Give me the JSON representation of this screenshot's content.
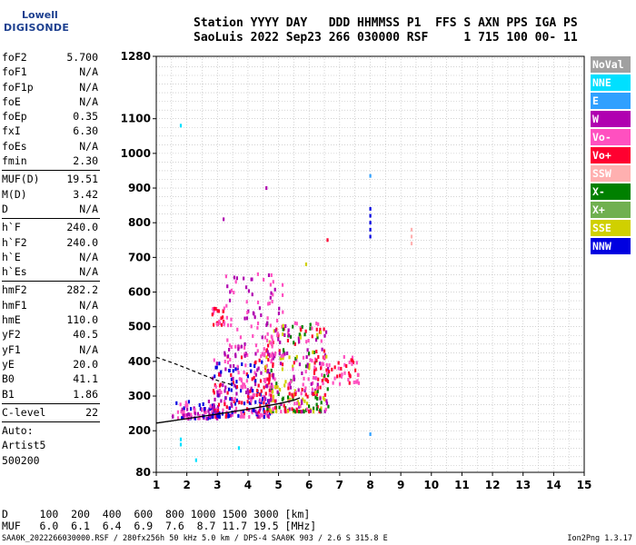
{
  "logo": {
    "line1": "Lowell",
    "line2": "DIGISONDE"
  },
  "header": {
    "line1": "Station YYYY DAY   DDD HHMMSS P1  FFS S AXN PPS IGA PS",
    "line2": "SaoLuis 2022 Sep23 266 030000 RSF     1 715 100 00- 11"
  },
  "params": {
    "group1": [
      {
        "name": "foF2",
        "value": "5.700"
      },
      {
        "name": "foF1",
        "value": "N/A"
      },
      {
        "name": "foF1p",
        "value": "N/A"
      },
      {
        "name": "foE",
        "value": "N/A"
      },
      {
        "name": "foEp",
        "value": "0.35"
      },
      {
        "name": "fxI",
        "value": "6.30"
      },
      {
        "name": "foEs",
        "value": "N/A"
      },
      {
        "name": "fmin",
        "value": "2.30"
      }
    ],
    "group2": [
      {
        "name": "MUF(D)",
        "value": "19.51"
      },
      {
        "name": "M(D)",
        "value": "3.42"
      },
      {
        "name": "D",
        "value": "N/A"
      }
    ],
    "group3": [
      {
        "name": "h`F",
        "value": "240.0"
      },
      {
        "name": "h`F2",
        "value": "240.0"
      },
      {
        "name": "h`E",
        "value": "N/A"
      },
      {
        "name": "h`Es",
        "value": "N/A"
      }
    ],
    "group4": [
      {
        "name": "hmF2",
        "value": "282.2"
      },
      {
        "name": "hmF1",
        "value": "N/A"
      },
      {
        "name": "hmE",
        "value": "110.0"
      },
      {
        "name": "yF2",
        "value": "40.5"
      },
      {
        "name": "yF1",
        "value": "N/A"
      },
      {
        "name": "yE",
        "value": "20.0"
      },
      {
        "name": "B0",
        "value": "41.1"
      },
      {
        "name": "B1",
        "value": "1.86"
      }
    ],
    "group5": [
      {
        "name": "C-level",
        "value": "22"
      }
    ],
    "auto": [
      "Auto:",
      "Artist5",
      "500200"
    ]
  },
  "legend": [
    {
      "label": "NoVal",
      "color": "#a0a0a0"
    },
    {
      "label": "NNE",
      "color": "#00e0ff"
    },
    {
      "label": "E",
      "color": "#30a0ff"
    },
    {
      "label": "W",
      "color": "#b000b0"
    },
    {
      "label": "Vo-",
      "color": "#ff50c0"
    },
    {
      "label": "Vo+",
      "color": "#ff0030"
    },
    {
      "label": "SSW",
      "color": "#ffb0b0"
    },
    {
      "label": "X-",
      "color": "#008000"
    },
    {
      "label": "X+",
      "color": "#70b050"
    },
    {
      "label": "SSE",
      "color": "#d0d000"
    },
    {
      "label": "NNW",
      "color": "#0000e0"
    }
  ],
  "chart_data": {
    "type": "scatter",
    "xlim": [
      1,
      15
    ],
    "ylim": [
      80,
      1280
    ],
    "xticks": [
      1,
      2,
      3,
      4,
      5,
      6,
      7,
      8,
      9,
      10,
      11,
      12,
      13,
      14,
      15
    ],
    "yticks": [
      80,
      200,
      300,
      400,
      500,
      600,
      700,
      800,
      900,
      1000,
      1100,
      1280
    ],
    "grid": true,
    "legend_position": "right",
    "profile_curve": {
      "x": [
        1.0,
        2.0,
        3.0,
        4.0,
        5.0,
        5.5,
        5.7
      ],
      "y": [
        222,
        235,
        248,
        262,
        278,
        288,
        295
      ]
    },
    "extrapolated_curve": {
      "x": [
        1.0,
        1.5,
        2.0,
        2.5,
        3.0,
        3.5
      ],
      "y": [
        412,
        397,
        380,
        362,
        345,
        332
      ]
    },
    "trace_clusters": [
      {
        "x_range": [
          1.5,
          3.0
        ],
        "y_range": [
          240,
          290
        ],
        "density": 90,
        "colors": [
          "#0000e0",
          "#b000b0",
          "#ff50c0"
        ]
      },
      {
        "x_range": [
          2.8,
          4.8
        ],
        "y_range": [
          245,
          420
        ],
        "density": 260,
        "colors": [
          "#0000e0",
          "#b000b0",
          "#ff50c0",
          "#ff0030"
        ]
      },
      {
        "x_range": [
          4.5,
          6.6
        ],
        "y_range": [
          260,
          520
        ],
        "density": 300,
        "colors": [
          "#ff0030",
          "#ff50c0",
          "#b000b0",
          "#008000",
          "#d0d000"
        ]
      },
      {
        "x_range": [
          3.2,
          5.2
        ],
        "y_range": [
          420,
          660
        ],
        "density": 110,
        "colors": [
          "#b000b0",
          "#ff50c0"
        ]
      },
      {
        "x_range": [
          2.8,
          3.3
        ],
        "y_range": [
          510,
          560
        ],
        "density": 25,
        "colors": [
          "#ff50c0",
          "#ff0030"
        ]
      },
      {
        "x_range": [
          6.0,
          7.6
        ],
        "y_range": [
          340,
          420
        ],
        "density": 60,
        "colors": [
          "#ff0030",
          "#ff50c0"
        ]
      }
    ],
    "isolated_points": [
      {
        "x": 1.8,
        "y": 1080,
        "color": "#00e0ff"
      },
      {
        "x": 1.8,
        "y": 175,
        "color": "#00e0ff"
      },
      {
        "x": 1.8,
        "y": 160,
        "color": "#00e0ff"
      },
      {
        "x": 2.3,
        "y": 115,
        "color": "#00e0ff"
      },
      {
        "x": 3.7,
        "y": 150,
        "color": "#00e0ff"
      },
      {
        "x": 8.0,
        "y": 935,
        "color": "#30a0ff"
      },
      {
        "x": 8.0,
        "y": 190,
        "color": "#30a0ff"
      },
      {
        "x": 8.0,
        "y": 840,
        "color": "#0000e0"
      },
      {
        "x": 8.0,
        "y": 820,
        "color": "#0000e0"
      },
      {
        "x": 8.0,
        "y": 800,
        "color": "#0000e0"
      },
      {
        "x": 8.0,
        "y": 780,
        "color": "#0000e0"
      },
      {
        "x": 8.0,
        "y": 760,
        "color": "#0000e0"
      },
      {
        "x": 9.35,
        "y": 780,
        "color": "#ffb0b0"
      },
      {
        "x": 9.35,
        "y": 760,
        "color": "#ffb0b0"
      },
      {
        "x": 9.35,
        "y": 740,
        "color": "#ffb0b0"
      },
      {
        "x": 3.2,
        "y": 810,
        "color": "#b000b0"
      },
      {
        "x": 4.6,
        "y": 900,
        "color": "#b000b0"
      },
      {
        "x": 6.6,
        "y": 750,
        "color": "#ff0030"
      },
      {
        "x": 5.9,
        "y": 680,
        "color": "#d0d000"
      }
    ]
  },
  "footer": {
    "d_line": "D     100  200  400  600  800 1000 1500 3000 [km]",
    "muf_line": "MUF   6.0  6.1  6.4  6.9  7.6  8.7 11.7 19.5 [MHz]",
    "info": "SAA0K_2022266030000.RSF / 280fx256h 50 kHz 5.0 km / DPS-4 SAA0K 903 / 2.6 S 315.8 E",
    "version": "Ion2Png 1.3.17"
  }
}
